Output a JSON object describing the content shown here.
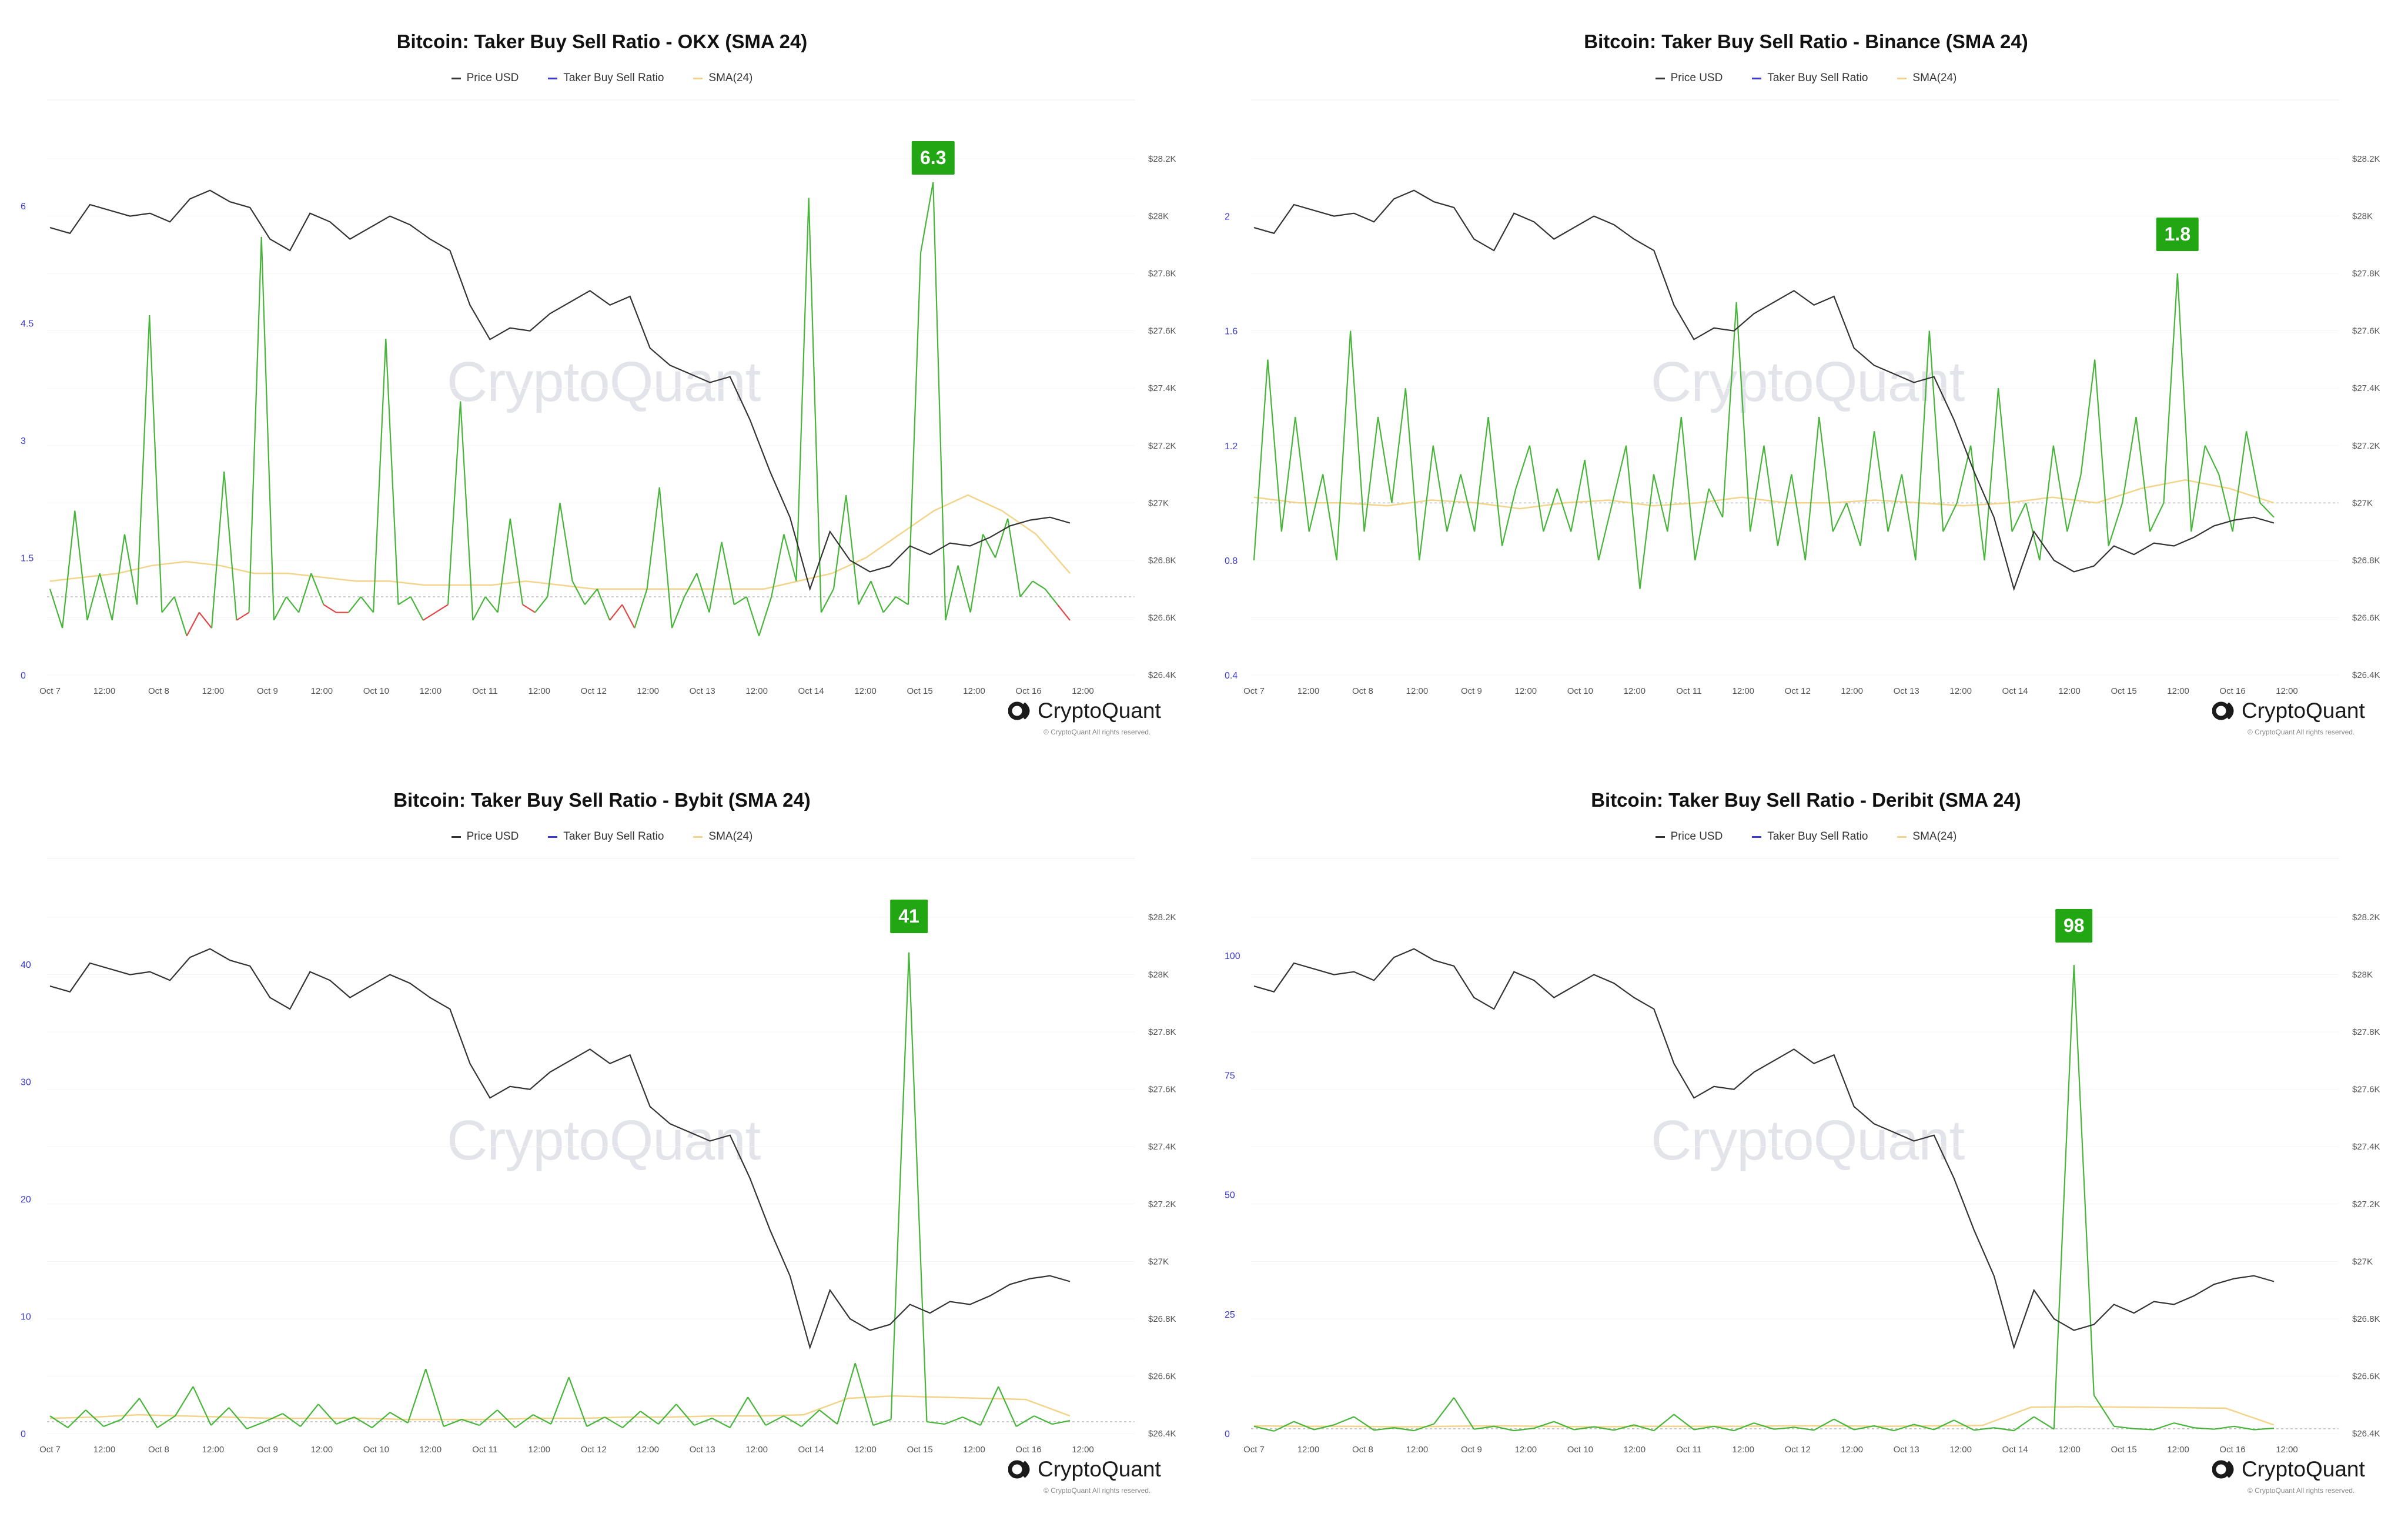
{
  "legend": {
    "price": "Price USD",
    "ratio": "Taker Buy Sell Ratio",
    "sma": "SMA(24)"
  },
  "colors": {
    "price": "#333333",
    "ratio_legend": "#3b3bcf",
    "above": "#47b43a",
    "below": "#e04646",
    "sma": "#f2d48a",
    "badge": "#22a613"
  },
  "watermark": "CryptoQuant",
  "brand": {
    "name": "CryptoQuant",
    "copyright": "© CryptoQuant All rights reserved."
  },
  "price_axis": {
    "ticks": [
      {
        "v": 28200,
        "label": "$28.2K"
      },
      {
        "v": 28000,
        "label": "$28K"
      },
      {
        "v": 27800,
        "label": "$27.8K"
      },
      {
        "v": 27600,
        "label": "$27.6K"
      },
      {
        "v": 27400,
        "label": "$27.4K"
      },
      {
        "v": 27200,
        "label": "$27.2K"
      },
      {
        "v": 27000,
        "label": "$27K"
      },
      {
        "v": 26800,
        "label": "$26.8K"
      },
      {
        "v": 26600,
        "label": "$26.6K"
      },
      {
        "v": 26400,
        "label": "$26.4K"
      }
    ],
    "range": [
      26400,
      28200
    ]
  },
  "x_axis_labels": [
    "Oct 7",
    "12:00",
    "Oct 8",
    "12:00",
    "Oct 9",
    "12:00",
    "Oct 10",
    "12:00",
    "Oct 11",
    "12:00",
    "Oct 12",
    "12:00",
    "Oct 13",
    "12:00",
    "Oct 14",
    "12:00",
    "Oct 15",
    "12:00",
    "Oct 16",
    "12:00"
  ],
  "chart_data": [
    {
      "type": "line",
      "title": "Bitcoin: Taker Buy Sell Ratio - OKX (SMA 24)",
      "x_range": [
        "Oct 7 00:00",
        "Oct 16 22:00"
      ],
      "series": [
        {
          "name": "Price USD",
          "axis": "right",
          "values": [
            27960,
            27940,
            28040,
            28020,
            28000,
            28010,
            27980,
            28060,
            28090,
            28050,
            28030,
            27920,
            27880,
            28010,
            27980,
            27920,
            27960,
            28000,
            27970,
            27920,
            27880,
            27690,
            27570,
            27610,
            27600,
            27660,
            27700,
            27740,
            27690,
            27720,
            27540,
            27480,
            27450,
            27420,
            27440,
            27290,
            27110,
            26950,
            26700,
            26900,
            26800,
            26760,
            26780,
            26850,
            26820,
            26860,
            26850,
            26880,
            26920,
            26940,
            26950,
            26930
          ]
        },
        {
          "name": "Taker Buy Sell Ratio",
          "axis": "left",
          "baseline": 1.0,
          "values": [
            1.1,
            0.6,
            2.1,
            0.7,
            1.3,
            0.7,
            1.8,
            0.9,
            4.6,
            0.8,
            1.0,
            0.5,
            0.8,
            0.6,
            2.6,
            0.7,
            0.8,
            5.6,
            0.7,
            1.0,
            0.8,
            1.3,
            0.9,
            0.8,
            0.8,
            1.0,
            0.8,
            4.3,
            0.9,
            1.0,
            0.7,
            0.8,
            0.9,
            3.5,
            0.7,
            1.0,
            0.8,
            2.0,
            0.9,
            0.8,
            1.0,
            2.2,
            1.2,
            0.9,
            1.1,
            0.7,
            0.9,
            0.6,
            1.1,
            2.4,
            0.6,
            1.0,
            1.3,
            0.8,
            1.7,
            0.9,
            1.0,
            0.5,
            1.0,
            1.8,
            1.2,
            6.1,
            0.8,
            1.1,
            2.3,
            0.9,
            1.2,
            0.8,
            1.0,
            0.9,
            5.4,
            6.3,
            0.7,
            1.4,
            0.8,
            1.8,
            1.5,
            2.0,
            1.0,
            1.2,
            1.1,
            0.9,
            0.7
          ]
        },
        {
          "name": "SMA(24)",
          "axis": "left",
          "values": [
            1.2,
            1.25,
            1.3,
            1.4,
            1.45,
            1.4,
            1.3,
            1.3,
            1.25,
            1.2,
            1.2,
            1.15,
            1.15,
            1.15,
            1.2,
            1.15,
            1.1,
            1.1,
            1.1,
            1.1,
            1.1,
            1.1,
            1.2,
            1.3,
            1.5,
            1.8,
            2.1,
            2.3,
            2.1,
            1.8,
            1.3
          ]
        }
      ],
      "yaxis": {
        "ticks": [
          0,
          1.5,
          3,
          4.5,
          6
        ],
        "labels": [
          "0",
          "1.5",
          "3",
          "4.5",
          "6"
        ],
        "range": [
          0,
          6.6
        ]
      },
      "annotation": "6.3"
    },
    {
      "type": "line",
      "title": "Bitcoin: Taker Buy Sell Ratio - Binance (SMA 24)",
      "x_range": [
        "Oct 7 00:00",
        "Oct 16 22:00"
      ],
      "series": [
        {
          "name": "Price USD",
          "axis": "right",
          "values": [
            27960,
            27940,
            28040,
            28020,
            28000,
            28010,
            27980,
            28060,
            28090,
            28050,
            28030,
            27920,
            27880,
            28010,
            27980,
            27920,
            27960,
            28000,
            27970,
            27920,
            27880,
            27690,
            27570,
            27610,
            27600,
            27660,
            27700,
            27740,
            27690,
            27720,
            27540,
            27480,
            27450,
            27420,
            27440,
            27290,
            27110,
            26950,
            26700,
            26900,
            26800,
            26760,
            26780,
            26850,
            26820,
            26860,
            26850,
            26880,
            26920,
            26940,
            26950,
            26930
          ]
        },
        {
          "name": "Taker Buy Sell Ratio",
          "axis": "left",
          "baseline": 1.0,
          "values": [
            0.8,
            1.5,
            0.9,
            1.3,
            0.9,
            1.1,
            0.8,
            1.6,
            0.9,
            1.3,
            1.0,
            1.4,
            0.8,
            1.2,
            0.9,
            1.1,
            0.9,
            1.3,
            0.85,
            1.05,
            1.2,
            0.9,
            1.05,
            0.9,
            1.15,
            0.8,
            1.0,
            1.2,
            0.7,
            1.1,
            0.9,
            1.3,
            0.8,
            1.05,
            0.95,
            1.7,
            0.9,
            1.2,
            0.85,
            1.1,
            0.8,
            1.3,
            0.9,
            1.0,
            0.85,
            1.25,
            0.9,
            1.1,
            0.8,
            1.6,
            0.9,
            1.0,
            1.2,
            0.8,
            1.4,
            0.9,
            1.0,
            0.8,
            1.2,
            0.9,
            1.1,
            1.5,
            0.85,
            1.0,
            1.3,
            0.9,
            1.0,
            1.8,
            0.9,
            1.2,
            1.1,
            0.9,
            1.25,
            1.0,
            0.95
          ]
        },
        {
          "name": "SMA(24)",
          "axis": "left",
          "values": [
            1.02,
            1.0,
            1.0,
            0.99,
            1.01,
            1.0,
            0.98,
            1.0,
            1.01,
            0.99,
            1.0,
            1.02,
            1.0,
            1.0,
            1.01,
            1.0,
            0.99,
            1.0,
            1.02,
            1.0,
            1.05,
            1.08,
            1.05,
            1.0
          ]
        }
      ],
      "yaxis": {
        "ticks": [
          0.4,
          0.8,
          1.2,
          1.6,
          2
        ],
        "labels": [
          "0.4",
          "0.8",
          "1.2",
          "1.6",
          "2"
        ],
        "range": [
          0.4,
          2.2
        ]
      },
      "annotation": "1.8"
    },
    {
      "type": "line",
      "title": "Bitcoin: Taker Buy Sell Ratio - Bybit (SMA 24)",
      "x_range": [
        "Oct 7 00:00",
        "Oct 16 22:00"
      ],
      "series": [
        {
          "name": "Price USD",
          "axis": "right",
          "values": [
            27960,
            27940,
            28040,
            28020,
            28000,
            28010,
            27980,
            28060,
            28090,
            28050,
            28030,
            27920,
            27880,
            28010,
            27980,
            27920,
            27960,
            28000,
            27970,
            27920,
            27880,
            27690,
            27570,
            27610,
            27600,
            27660,
            27700,
            27740,
            27690,
            27720,
            27540,
            27480,
            27450,
            27420,
            27440,
            27290,
            27110,
            26950,
            26700,
            26900,
            26800,
            26760,
            26780,
            26850,
            26820,
            26860,
            26850,
            26880,
            26920,
            26940,
            26950,
            26930
          ]
        },
        {
          "name": "Taker Buy Sell Ratio",
          "axis": "left",
          "baseline": 1.0,
          "values": [
            1.5,
            0.5,
            2.0,
            0.6,
            1.2,
            3.0,
            0.5,
            1.5,
            4.0,
            0.7,
            2.2,
            0.4,
            1.0,
            1.7,
            0.6,
            2.5,
            0.8,
            1.4,
            0.5,
            1.8,
            0.9,
            5.5,
            0.6,
            1.2,
            0.7,
            2.0,
            0.5,
            1.6,
            0.8,
            4.8,
            0.6,
            1.4,
            0.5,
            1.9,
            0.8,
            2.5,
            0.7,
            1.3,
            0.5,
            3.1,
            0.7,
            1.5,
            0.6,
            2.0,
            0.8,
            6.0,
            0.7,
            1.2,
            41.0,
            1.0,
            0.8,
            1.4,
            0.7,
            4.0,
            0.6,
            1.5,
            0.8,
            1.1
          ]
        },
        {
          "name": "SMA(24)",
          "axis": "left",
          "values": [
            1.3,
            1.4,
            1.6,
            1.5,
            1.4,
            1.3,
            1.3,
            1.3,
            1.2,
            1.2,
            1.2,
            1.3,
            1.3,
            1.4,
            1.4,
            1.5,
            1.5,
            1.6,
            3.0,
            3.2,
            3.1,
            3.0,
            2.9,
            1.5
          ]
        }
      ],
      "yaxis": {
        "ticks": [
          0,
          10,
          20,
          30,
          40
        ],
        "labels": [
          "0",
          "10",
          "20",
          "30",
          "40"
        ],
        "range": [
          0,
          44
        ]
      },
      "annotation": "41"
    },
    {
      "type": "line",
      "title": "Bitcoin: Taker Buy Sell Ratio - Deribit (SMA 24)",
      "x_range": [
        "Oct 7 00:00",
        "Oct 16 22:00"
      ],
      "series": [
        {
          "name": "Price USD",
          "axis": "right",
          "values": [
            27960,
            27940,
            28040,
            28020,
            28000,
            28010,
            27980,
            28060,
            28090,
            28050,
            28030,
            27920,
            27880,
            28010,
            27980,
            27920,
            27960,
            28000,
            27970,
            27920,
            27880,
            27690,
            27570,
            27610,
            27600,
            27660,
            27700,
            27740,
            27690,
            27720,
            27540,
            27480,
            27450,
            27420,
            27440,
            27290,
            27110,
            26950,
            26700,
            26900,
            26800,
            26760,
            26780,
            26850,
            26820,
            26860,
            26850,
            26880,
            26920,
            26940,
            26950,
            26930
          ]
        },
        {
          "name": "Taker Buy Sell Ratio",
          "axis": "left",
          "baseline": 1.0,
          "values": [
            1.5,
            0.5,
            2.5,
            0.8,
            1.8,
            3.5,
            0.7,
            1.2,
            0.6,
            2.0,
            7.5,
            0.9,
            1.5,
            0.6,
            1.1,
            2.5,
            0.8,
            1.4,
            0.7,
            1.8,
            0.6,
            4.0,
            0.8,
            1.5,
            0.6,
            2.2,
            0.9,
            1.3,
            0.7,
            3.0,
            0.8,
            1.6,
            0.6,
            1.9,
            0.8,
            2.8,
            0.7,
            1.2,
            0.6,
            3.5,
            0.9,
            98.0,
            8.0,
            1.5,
            1.0,
            0.8,
            2.2,
            1.2,
            0.9,
            1.5,
            0.8,
            1.1
          ]
        },
        {
          "name": "SMA(24)",
          "axis": "left",
          "values": [
            1.6,
            1.5,
            1.5,
            1.4,
            1.5,
            1.6,
            1.5,
            1.4,
            1.5,
            1.5,
            1.5,
            1.6,
            1.6,
            1.5,
            1.6,
            1.7,
            5.5,
            5.6,
            5.5,
            5.4,
            5.3,
            1.8
          ]
        }
      ],
      "yaxis": {
        "ticks": [
          0,
          25,
          50,
          75,
          100
        ],
        "labels": [
          "0",
          "25",
          "50",
          "75",
          "100"
        ],
        "range": [
          0,
          108
        ]
      },
      "annotation": "98"
    }
  ]
}
